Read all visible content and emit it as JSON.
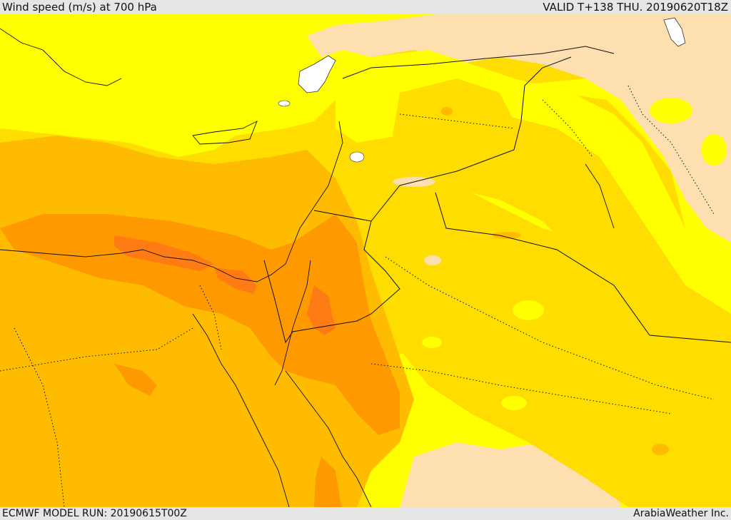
{
  "header": {
    "title": "Wind speed (m/s) at 700 hPa",
    "valid": "VALID T+138 THU. 20190620T18Z"
  },
  "footer": {
    "model_run": "ECMWF MODEL RUN: 20190615T00Z",
    "credit": "ArabiaWeather Inc."
  },
  "colors": {
    "background": "#ffffff",
    "very_low": "#fddfb0",
    "low": "#ffff00",
    "moderate": "#ffdd00",
    "elevated": "#ffbb00",
    "high": "#ff9900",
    "very_high": "#ff7b14",
    "boundaries": "#222222"
  }
}
